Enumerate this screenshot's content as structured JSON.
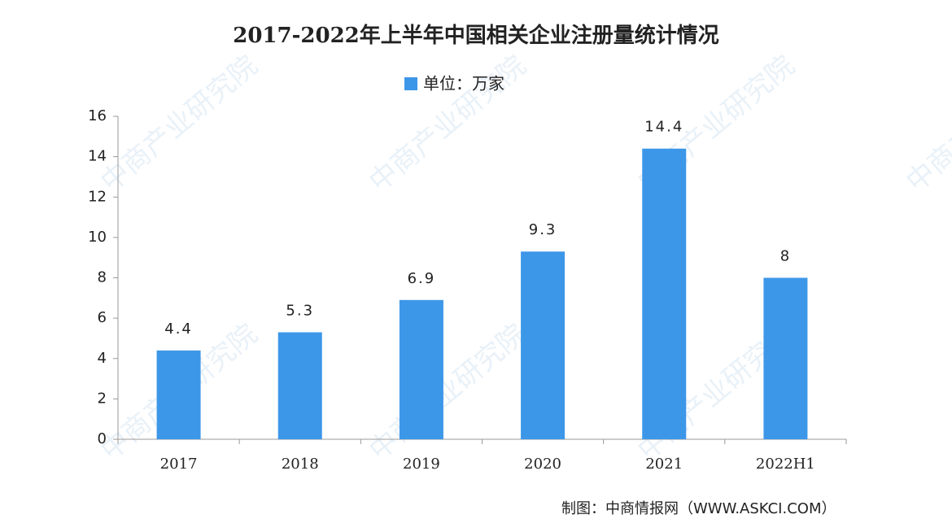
{
  "chart_data": {
    "type": "bar",
    "title": "2017-2022年上半年中国相关企业注册量统计情况",
    "categories": [
      "2017",
      "2018",
      "2019",
      "2020",
      "2021",
      "2022H1"
    ],
    "series": [
      {
        "name": "单位：万家",
        "color": "#3d97e8",
        "values": [
          4.4,
          5.3,
          6.9,
          9.3,
          14.4,
          8
        ]
      }
    ],
    "ylim": [
      0,
      16
    ],
    "yticks": [
      0,
      2,
      4,
      6,
      8,
      10,
      12,
      14,
      16
    ],
    "grid": false,
    "source": "制图：中商情报网（WWW.ASKCI.COM）",
    "watermark": "中商产业研究院"
  }
}
